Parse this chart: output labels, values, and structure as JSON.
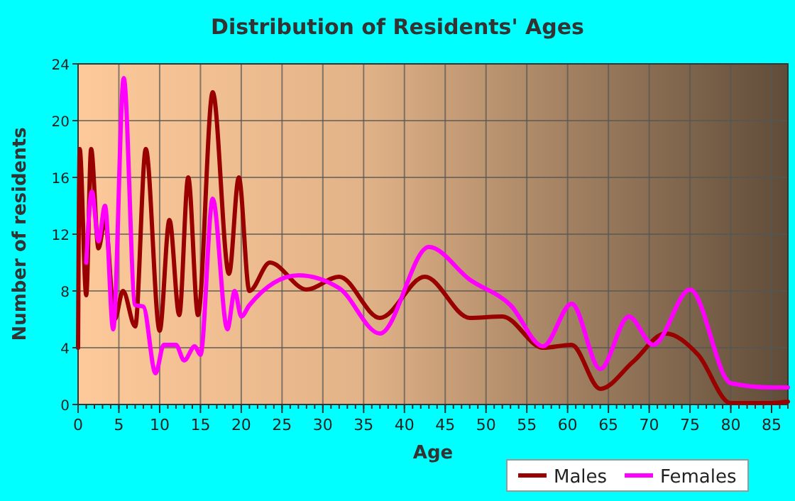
{
  "chart_data": {
    "type": "line",
    "title": "Distribution of Residents' Ages",
    "xlabel": "Age",
    "ylabel": "Number of residents",
    "xlim": [
      0,
      87
    ],
    "xticks": [
      0,
      5,
      10,
      15,
      20,
      25,
      30,
      35,
      40,
      45,
      50,
      55,
      60,
      65,
      70,
      75,
      80,
      85
    ],
    "ylim": [
      0,
      24
    ],
    "yticks": [
      0,
      4,
      8,
      12,
      16,
      20,
      24
    ],
    "grid": true,
    "legend": "bottom",
    "marker": "none",
    "line_style": "solid",
    "series": [
      {
        "name": "Males",
        "color": "#990000",
        "x": [
          0,
          0.2,
          1,
          1.6,
          2.5,
          3.3,
          4.5,
          5.5,
          7,
          8.3,
          10,
          11.2,
          12.4,
          13.5,
          14.7,
          16.5,
          18.5,
          19.7,
          21,
          23.5,
          28,
          32,
          37,
          42.5,
          48,
          52,
          57,
          60.5,
          64,
          68,
          72,
          76,
          80,
          85,
          87
        ],
        "values": [
          4,
          18,
          7.7,
          18,
          11,
          13,
          6,
          8,
          5.5,
          18,
          5.2,
          13,
          6.3,
          16,
          6.3,
          22,
          9.2,
          16,
          8,
          10,
          8.1,
          9,
          6.1,
          9,
          6.1,
          6.2,
          4,
          4.2,
          1.1,
          3,
          5,
          3.5,
          0.1,
          0.1,
          0.2
        ]
      },
      {
        "name": "Females",
        "color": "#ff00ff",
        "x": [
          1,
          1.7,
          2.5,
          3.3,
          4.3,
          5.6,
          7,
          8,
          9.5,
          10.5,
          12,
          13,
          14.3,
          15,
          16.5,
          18.3,
          19.2,
          20,
          21,
          27,
          32,
          37,
          43,
          48,
          53,
          57,
          60.5,
          64,
          67.5,
          70.5,
          75,
          80,
          85,
          87
        ],
        "values": [
          10,
          15,
          11.5,
          14,
          5.3,
          23,
          7,
          6.9,
          2.2,
          4.2,
          4.2,
          3.1,
          4.1,
          3.5,
          14.5,
          5.3,
          8,
          6.2,
          7,
          9.1,
          8.2,
          5,
          11.1,
          8.8,
          7,
          4.1,
          7.1,
          2.5,
          6.2,
          4.2,
          8.1,
          1.5,
          1.2,
          1.2
        ]
      }
    ]
  }
}
